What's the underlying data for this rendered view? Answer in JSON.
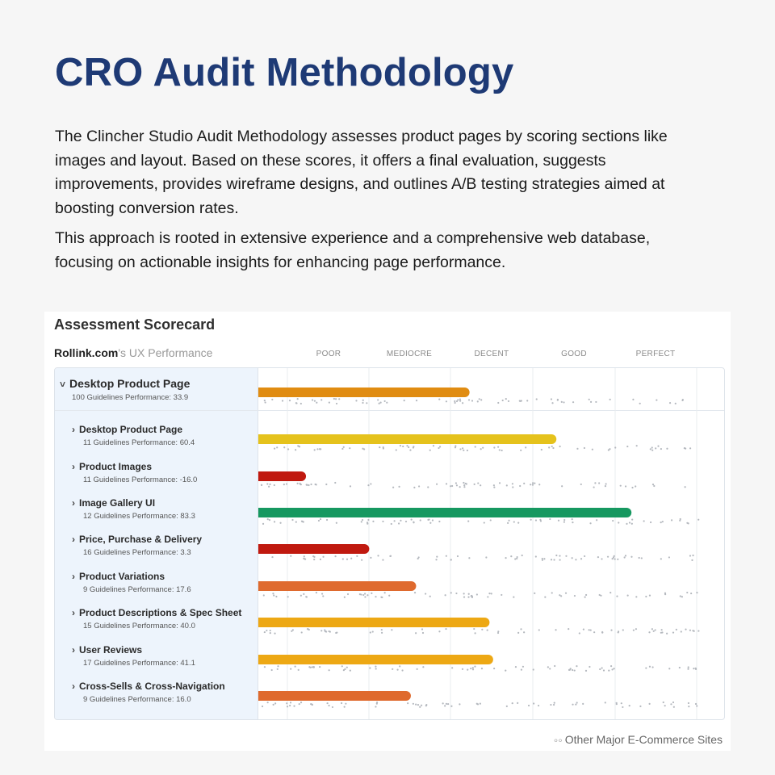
{
  "page": {
    "title": "CRO Audit Methodology",
    "paragraph1": "The Clincher Studio Audit Methodology assesses product pages by scoring sections like images and layout. Based on these scores, it offers a final evaluation, suggests improvements, provides wireframe designs, and outlines A/B testing strategies aimed at boosting conversion rates.",
    "paragraph2": "This approach is rooted in extensive experience and a comprehensive web database, focusing on actionable insights for enhancing page performance."
  },
  "scorecard": {
    "title": "Assessment Scorecard",
    "site": "Rollink.com",
    "site_suffix": "'s UX Performance",
    "footer": "Other Major E-Commerce Sites"
  },
  "chart_data": {
    "type": "bar",
    "orientation": "horizontal",
    "scale_labels": [
      "POOR",
      "MEDIOCRE",
      "DECENT",
      "GOOD",
      "PERFECT"
    ],
    "xlim": [
      -50,
      100
    ],
    "series": [
      {
        "values": [
          33.9,
          60.4,
          -16.0,
          83.3,
          3.3,
          17.6,
          40.0,
          41.1,
          16.0
        ]
      }
    ],
    "rows": [
      {
        "name": "Desktop Product Page",
        "sub": "100 Guidelines  Performance: 33.9",
        "value": 33.9,
        "color": "#e08c12",
        "expanded": true,
        "main": true
      },
      {
        "name": "Desktop Product Page",
        "sub": "11 Guidelines  Performance: 60.4",
        "value": 60.4,
        "color": "#e5c21c"
      },
      {
        "name": "Product Images",
        "sub": "11 Guidelines  Performance: -16.0",
        "value": -16.0,
        "color": "#c0190f"
      },
      {
        "name": "Image Gallery UI",
        "sub": "12 Guidelines  Performance: 83.3",
        "value": 83.3,
        "color": "#169860"
      },
      {
        "name": "Price, Purchase & Delivery",
        "sub": "16 Guidelines  Performance: 3.3",
        "value": 3.3,
        "color": "#c0190f"
      },
      {
        "name": "Product Variations",
        "sub": "9 Guidelines  Performance: 17.6",
        "value": 17.6,
        "color": "#df6a2e"
      },
      {
        "name": "Product Descriptions & Spec Sheet",
        "sub": "15 Guidelines  Performance: 40.0",
        "value": 40.0,
        "color": "#eda814"
      },
      {
        "name": "User Reviews",
        "sub": "17 Guidelines  Performance: 41.1",
        "value": 41.1,
        "color": "#eda814"
      },
      {
        "name": "Cross-Sells & Cross-Navigation",
        "sub": "9 Guidelines  Performance: 16.0",
        "value": 16.0,
        "color": "#df6a2e"
      }
    ],
    "grid": true
  }
}
